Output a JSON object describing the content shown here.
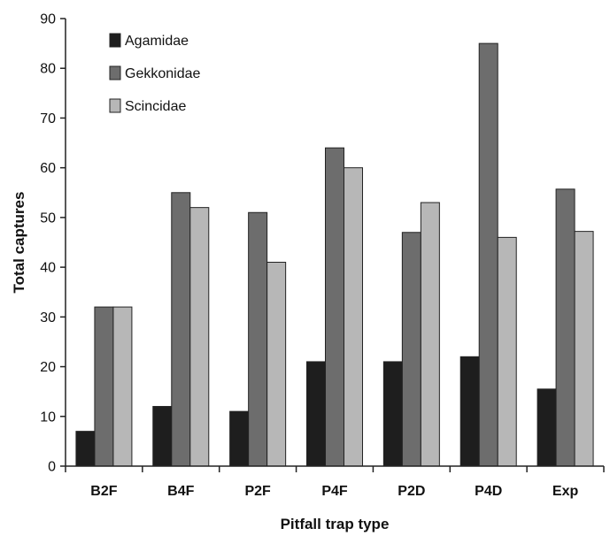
{
  "chart_data": {
    "type": "bar",
    "categories": [
      "B2F",
      "B4F",
      "P2F",
      "P4F",
      "P2D",
      "P4D",
      "Exp"
    ],
    "series": [
      {
        "name": "Agamidae",
        "values": [
          7,
          12,
          11,
          21,
          21,
          22,
          15.5
        ],
        "color": "#1e1e1e"
      },
      {
        "name": "Gekkonidae",
        "values": [
          32,
          55,
          51,
          64,
          47,
          85,
          55.7
        ],
        "color": "#6d6d6d"
      },
      {
        "name": "Scincidae",
        "values": [
          32,
          52,
          41,
          60,
          53,
          46,
          47.2
        ],
        "color": "#b7b7b7"
      }
    ],
    "xlabel": "Pitfall trap type",
    "ylabel": "Total captures",
    "ylim": [
      0,
      90
    ],
    "yticks": [
      0,
      10,
      20,
      30,
      40,
      50,
      60,
      70,
      80,
      90
    ],
    "grid": false,
    "legend_position": "top-left"
  }
}
